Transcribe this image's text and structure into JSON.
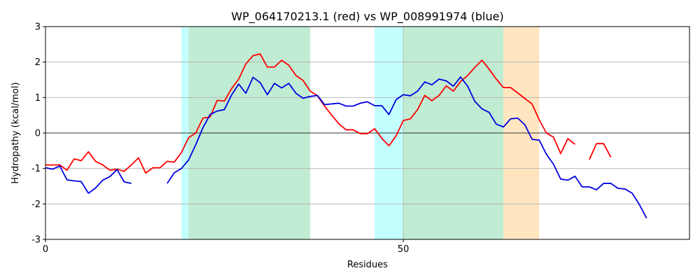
{
  "chart_data": {
    "type": "line",
    "title": "WP_064170213.1 (red) vs WP_008991974 (blue)",
    "xlabel": "Residues",
    "ylabel": "Hydropathy (kcal/mol)",
    "xlim": [
      0,
      90
    ],
    "ylim": [
      -3,
      3
    ],
    "xticks": [
      0,
      50
    ],
    "yticks": [
      -3,
      -2,
      -1,
      0,
      1,
      2,
      3
    ],
    "grid": "horizontal",
    "reference_lines": {
      "y": 0,
      "x": 50
    },
    "regions": [
      {
        "from": 19,
        "to": 20,
        "color": "#c4ffff"
      },
      {
        "from": 20,
        "to": 37,
        "color": "#c0ecd3"
      },
      {
        "from": 46,
        "to": 50,
        "color": "#c4ffff"
      },
      {
        "from": 50,
        "to": 64,
        "color": "#c0ecd3"
      },
      {
        "from": 64,
        "to": 69,
        "color": "#ffe6c0"
      }
    ],
    "series": [
      {
        "color": "#ff0000",
        "points": [
          [
            0,
            -0.9
          ],
          [
            1,
            -0.9
          ],
          [
            2,
            -0.9
          ],
          [
            3,
            -1.05
          ],
          [
            4,
            -0.73
          ],
          [
            5,
            -0.78
          ],
          [
            6,
            -0.53
          ],
          [
            7,
            -0.8
          ],
          [
            8,
            -0.9
          ],
          [
            9,
            -1.05
          ],
          [
            10,
            -1.02
          ],
          [
            11,
            -1.08
          ],
          [
            12,
            -0.9
          ],
          [
            13,
            -0.7
          ],
          [
            14,
            -1.13
          ],
          [
            15,
            -0.98
          ],
          [
            16,
            -0.98
          ],
          [
            17,
            -0.8
          ],
          [
            18,
            -0.82
          ],
          [
            19,
            -0.55
          ],
          [
            20,
            -0.13
          ],
          [
            21,
            0.0
          ],
          [
            22,
            0.42
          ],
          [
            23,
            0.45
          ],
          [
            24,
            0.92
          ],
          [
            25,
            0.9
          ],
          [
            26,
            1.25
          ],
          [
            27,
            1.52
          ],
          [
            28,
            1.95
          ],
          [
            29,
            2.18
          ],
          [
            30,
            2.23
          ],
          [
            31,
            1.86
          ],
          [
            32,
            1.86
          ],
          [
            33,
            2.05
          ],
          [
            34,
            1.91
          ],
          [
            35,
            1.62
          ],
          [
            36,
            1.48
          ],
          [
            37,
            1.18
          ],
          [
            38,
            1.05
          ],
          [
            39,
            0.76
          ],
          [
            40,
            0.5
          ],
          [
            41,
            0.26
          ],
          [
            42,
            0.09
          ],
          [
            43,
            0.09
          ],
          [
            44,
            -0.02
          ],
          [
            45,
            -0.02
          ],
          [
            46,
            0.12
          ],
          [
            47,
            -0.15
          ],
          [
            48,
            -0.36
          ],
          [
            49,
            -0.08
          ],
          [
            50,
            0.35
          ],
          [
            51,
            0.4
          ],
          [
            52,
            0.66
          ],
          [
            53,
            1.06
          ],
          [
            54,
            0.91
          ],
          [
            55,
            1.06
          ],
          [
            56,
            1.33
          ],
          [
            57,
            1.18
          ],
          [
            58,
            1.45
          ],
          [
            59,
            1.62
          ],
          [
            60,
            1.85
          ],
          [
            61,
            2.05
          ],
          [
            62,
            1.8
          ],
          [
            63,
            1.52
          ],
          [
            64,
            1.28
          ],
          [
            65,
            1.28
          ],
          [
            66,
            1.13
          ],
          [
            67,
            0.97
          ],
          [
            68,
            0.82
          ],
          [
            69,
            0.37
          ],
          [
            70,
            0.0
          ],
          [
            71,
            -0.12
          ],
          [
            72,
            -0.58
          ],
          [
            73,
            -0.16
          ],
          [
            74,
            -0.32
          ],
          null,
          [
            76,
            -0.75
          ],
          [
            77,
            -0.3
          ],
          [
            78,
            -0.3
          ],
          [
            79,
            -0.68
          ]
        ]
      },
      {
        "color": "#0000e0",
        "points": [
          [
            0,
            -0.98
          ],
          [
            1,
            -1.02
          ],
          [
            2,
            -0.93
          ],
          [
            3,
            -1.32
          ],
          [
            4,
            -1.35
          ],
          [
            5,
            -1.37
          ],
          [
            6,
            -1.7
          ],
          [
            7,
            -1.55
          ],
          [
            8,
            -1.33
          ],
          [
            9,
            -1.23
          ],
          [
            10,
            -1.03
          ],
          [
            11,
            -1.38
          ],
          [
            12,
            -1.42
          ],
          null,
          [
            17,
            -1.42
          ],
          [
            18,
            -1.12
          ],
          [
            19,
            -1.0
          ],
          [
            20,
            -0.76
          ],
          [
            21,
            -0.33
          ],
          [
            22,
            0.15
          ],
          [
            23,
            0.52
          ],
          [
            24,
            0.62
          ],
          [
            25,
            0.66
          ],
          [
            26,
            1.07
          ],
          [
            27,
            1.38
          ],
          [
            28,
            1.12
          ],
          [
            29,
            1.57
          ],
          [
            30,
            1.42
          ],
          [
            31,
            1.08
          ],
          [
            32,
            1.4
          ],
          [
            33,
            1.27
          ],
          [
            34,
            1.4
          ],
          [
            35,
            1.12
          ],
          [
            36,
            0.98
          ],
          [
            37,
            1.03
          ],
          [
            38,
            1.06
          ],
          [
            39,
            0.8
          ],
          [
            40,
            0.82
          ],
          [
            41,
            0.84
          ],
          [
            42,
            0.76
          ],
          [
            43,
            0.76
          ],
          [
            44,
            0.84
          ],
          [
            45,
            0.88
          ],
          [
            46,
            0.77
          ],
          [
            47,
            0.77
          ],
          [
            48,
            0.52
          ],
          [
            49,
            0.94
          ],
          [
            50,
            1.08
          ],
          [
            51,
            1.05
          ],
          [
            52,
            1.18
          ],
          [
            53,
            1.44
          ],
          [
            54,
            1.36
          ],
          [
            55,
            1.52
          ],
          [
            56,
            1.47
          ],
          [
            57,
            1.32
          ],
          [
            58,
            1.58
          ],
          [
            59,
            1.32
          ],
          [
            60,
            0.89
          ],
          [
            61,
            0.68
          ],
          [
            62,
            0.58
          ],
          [
            63,
            0.25
          ],
          [
            64,
            0.17
          ],
          [
            65,
            0.4
          ],
          [
            66,
            0.42
          ],
          [
            67,
            0.23
          ],
          [
            68,
            -0.18
          ],
          [
            69,
            -0.2
          ],
          [
            70,
            -0.6
          ],
          [
            71,
            -0.88
          ],
          [
            72,
            -1.3
          ],
          [
            73,
            -1.33
          ],
          [
            74,
            -1.22
          ],
          [
            75,
            -1.52
          ],
          [
            76,
            -1.52
          ],
          [
            77,
            -1.6
          ],
          [
            78,
            -1.42
          ],
          [
            79,
            -1.42
          ],
          [
            80,
            -1.56
          ],
          [
            81,
            -1.58
          ],
          [
            82,
            -1.7
          ],
          [
            83,
            -2.02
          ],
          [
            84,
            -2.4
          ]
        ]
      }
    ]
  }
}
